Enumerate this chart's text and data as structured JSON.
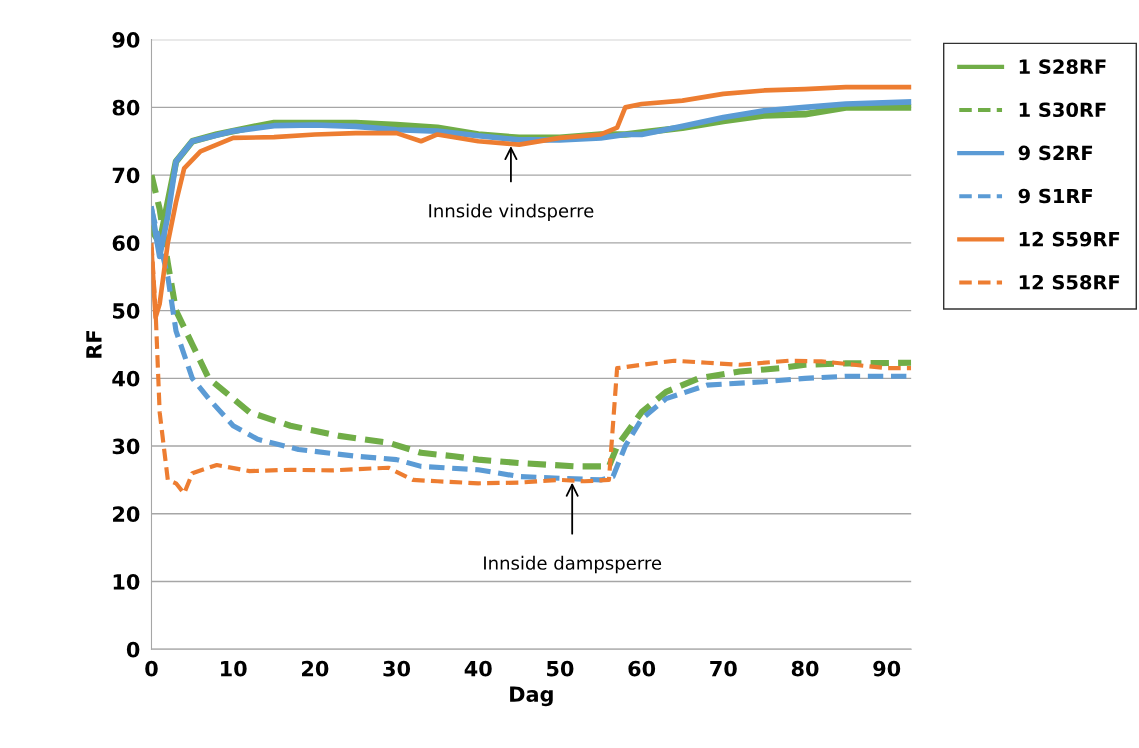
{
  "chart_data": {
    "type": "line",
    "xlabel": "Dag",
    "ylabel": "RF",
    "xlim": [
      0,
      93
    ],
    "xticks": [
      0,
      10,
      20,
      30,
      40,
      50,
      60,
      70,
      80,
      90
    ],
    "ylim": [
      0,
      90
    ],
    "yticks": [
      0,
      10,
      20,
      30,
      40,
      50,
      60,
      70,
      80,
      90
    ],
    "grid": "y",
    "legend": "right",
    "marker": "none",
    "series": [
      {
        "name": "1 S28RF",
        "color": "#70ad47",
        "line_style": "solid",
        "x": [
          0,
          1,
          2,
          3,
          5,
          8,
          12,
          15,
          20,
          25,
          30,
          35,
          40,
          45,
          50,
          55,
          58,
          60,
          65,
          70,
          75,
          80,
          85,
          93
        ],
        "values": [
          62,
          60,
          66,
          72,
          75,
          76,
          77,
          77.7,
          77.7,
          77.7,
          77.4,
          77,
          76,
          75.5,
          75.5,
          76,
          76,
          76.3,
          77,
          78,
          78.8,
          79,
          80,
          80
        ]
      },
      {
        "name": "1 S30RF",
        "color": "#70ad47",
        "line_style": "dashed",
        "x": [
          0,
          1,
          2,
          3,
          5,
          7,
          9,
          12,
          17,
          23,
          29,
          33,
          37,
          40,
          45,
          52,
          56,
          57,
          60,
          63,
          67,
          72,
          77,
          80,
          85,
          93
        ],
        "values": [
          70,
          65,
          57,
          50,
          45,
          40,
          38,
          35,
          33,
          31.5,
          30.5,
          29,
          28.5,
          28,
          27.5,
          27,
          27,
          30,
          35,
          38,
          40,
          41,
          41.5,
          42,
          42.2,
          42.3
        ]
      },
      {
        "name": "9 S2RF",
        "color": "#5b9bd5",
        "line_style": "solid",
        "x": [
          0,
          1,
          2,
          3,
          5,
          10,
          15,
          20,
          25,
          30,
          35,
          40,
          45,
          50,
          55,
          58,
          60,
          65,
          70,
          75,
          80,
          85,
          93
        ],
        "values": [
          65,
          58,
          64,
          72,
          75,
          76.5,
          77.3,
          77.4,
          77.2,
          76.7,
          76.5,
          75.8,
          75.2,
          75.2,
          75.5,
          76,
          76,
          77.2,
          78.5,
          79.5,
          80,
          80.5,
          80.8
        ]
      },
      {
        "name": "9 S1RF",
        "color": "#5b9bd5",
        "line_style": "dashed",
        "x": [
          0,
          1,
          2,
          3,
          5,
          7,
          10,
          13,
          18,
          25,
          30,
          33,
          40,
          45,
          55,
          56.5,
          58,
          60,
          63,
          68,
          75,
          80,
          85,
          93
        ],
        "values": [
          65,
          60,
          55,
          47,
          40,
          37,
          33,
          31,
          29.5,
          28.5,
          28,
          27,
          26.5,
          25.5,
          25,
          25.5,
          30,
          34,
          37,
          39,
          39.5,
          40,
          40.3,
          40.3
        ]
      },
      {
        "name": "12 S59RF",
        "color": "#ed7d31",
        "line_style": "solid",
        "x": [
          0,
          0.5,
          1,
          2,
          3,
          4,
          6,
          10,
          15,
          20,
          25,
          30,
          33,
          35,
          40,
          45,
          50,
          55,
          57,
          58,
          60,
          65,
          70,
          75,
          80,
          85,
          93
        ],
        "values": [
          59,
          49,
          51,
          60,
          66,
          71,
          73.5,
          75.5,
          75.6,
          76,
          76.2,
          76.2,
          75,
          76,
          75,
          74.5,
          75.5,
          76,
          77,
          80,
          80.5,
          81,
          82,
          82.5,
          82.7,
          83,
          83
        ]
      },
      {
        "name": "12 S58RF",
        "color": "#ed7d31",
        "line_style": "dashed",
        "x": [
          0,
          0.5,
          1,
          2,
          3,
          4,
          5,
          8,
          12,
          17,
          22,
          29,
          32,
          35,
          40,
          45,
          50,
          53,
          56,
          57,
          60,
          64,
          68,
          72,
          78,
          82,
          86,
          90,
          93
        ],
        "values": [
          60,
          50,
          35,
          25,
          24.5,
          23,
          26,
          27.2,
          26.3,
          26.5,
          26.4,
          26.8,
          25,
          24.8,
          24.5,
          24.6,
          25,
          24.8,
          25,
          41.5,
          42,
          42.6,
          42.3,
          42,
          42.6,
          42.5,
          42,
          41.5,
          41.5
        ]
      }
    ],
    "annotations": [
      {
        "text": "Innside vindsperre",
        "x": 44,
        "y": 74.5
      },
      {
        "text": "Innside dampsperre",
        "x": 51.5,
        "y": 24.8
      }
    ]
  }
}
